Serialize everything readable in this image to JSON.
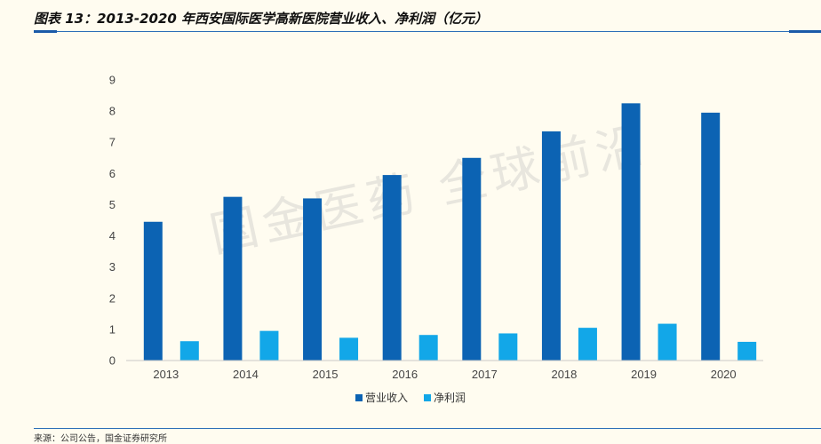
{
  "header": {
    "title": "图表 13：2013-2020 年西安国际医学高新医院营业收入、净利润（亿元）"
  },
  "watermark": "国金医药 全球前沿",
  "footer": {
    "source": "来源：公司公告，国金证券研究所"
  },
  "colors": {
    "revenue": "#0c63b3",
    "net_profit": "#12a7e8",
    "axis": "#c8c8c8"
  },
  "chart_data": {
    "type": "bar",
    "title": "",
    "xlabel": "",
    "ylabel": "",
    "categories": [
      "2013",
      "2014",
      "2015",
      "2016",
      "2017",
      "2018",
      "2019",
      "2020"
    ],
    "series": [
      {
        "name": "营业收入",
        "values": [
          4.45,
          5.25,
          5.2,
          5.95,
          6.5,
          7.35,
          8.25,
          7.95
        ]
      },
      {
        "name": "净利润",
        "values": [
          0.62,
          0.95,
          0.73,
          0.82,
          0.87,
          1.05,
          1.18,
          0.6
        ]
      }
    ],
    "ylim": [
      0,
      9
    ],
    "yticks": [
      "0",
      "1",
      "2",
      "3",
      "4",
      "5",
      "6",
      "7",
      "8",
      "9"
    ],
    "legend_position": "bottom",
    "grid": false
  }
}
